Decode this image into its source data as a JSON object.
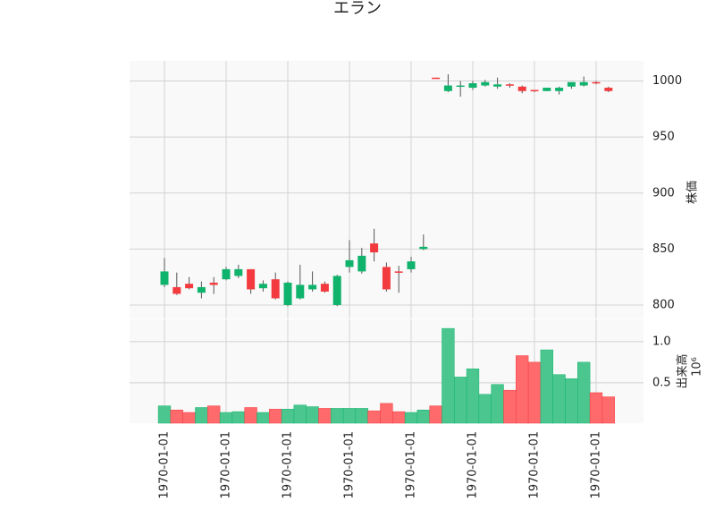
{
  "chart_data": {
    "type": "candlestick",
    "title": "エラン",
    "categories": [
      "1970-01-01",
      null,
      null,
      null,
      null,
      "1970-01-01",
      null,
      null,
      null,
      null,
      "1970-01-01",
      null,
      null,
      null,
      null,
      "1970-01-01",
      null,
      null,
      null,
      null,
      "1970-01-01",
      null,
      null,
      null,
      null,
      "1970-01-01",
      null,
      null,
      null,
      null,
      "1970-01-01",
      null,
      null,
      null,
      null,
      "1970-01-01",
      null
    ],
    "open": [
      818,
      816,
      819,
      811,
      820,
      823,
      826,
      832,
      815,
      823,
      800,
      806,
      814,
      819,
      800,
      834,
      830,
      855,
      834,
      830,
      832,
      850,
      1003,
      991,
      995,
      994,
      996,
      995,
      997,
      995,
      992,
      991,
      991,
      995,
      996,
      999,
      994
    ],
    "high": [
      842,
      829,
      825,
      821,
      825,
      834,
      836,
      832,
      822,
      829,
      821,
      836,
      830,
      821,
      827,
      858,
      851,
      868,
      838,
      835,
      843,
      863,
      1003,
      1006,
      1000,
      1000,
      1001,
      1003,
      998,
      996,
      992,
      994,
      995,
      999,
      1004,
      1000,
      995
    ],
    "low": [
      816,
      809,
      814,
      806,
      810,
      822,
      824,
      810,
      812,
      805,
      799,
      805,
      812,
      811,
      799,
      829,
      828,
      839,
      812,
      811,
      829,
      849,
      1002,
      990,
      986,
      992,
      995,
      993,
      994,
      989,
      990,
      991,
      988,
      993,
      995,
      997,
      990
    ],
    "close": [
      830,
      810,
      815,
      816,
      818,
      832,
      832,
      814,
      819,
      806,
      820,
      818,
      818,
      812,
      826,
      840,
      844,
      847,
      814,
      829,
      839,
      852,
      1002,
      996,
      996,
      998,
      999,
      997,
      996,
      991,
      991,
      994,
      994,
      999,
      999,
      998,
      991
    ],
    "volume": [
      0.22,
      0.17,
      0.14,
      0.2,
      0.22,
      0.14,
      0.15,
      0.2,
      0.14,
      0.18,
      0.18,
      0.23,
      0.21,
      0.19,
      0.19,
      0.19,
      0.19,
      0.16,
      0.25,
      0.15,
      0.14,
      0.17,
      0.22,
      1.16,
      0.57,
      0.67,
      0.36,
      0.48,
      0.41,
      0.83,
      0.75,
      0.9,
      0.6,
      0.55,
      0.75,
      0.38,
      0.33
    ],
    "ylabel": "株価",
    "ylim": [
      788,
      1018
    ],
    "yticks": [
      800,
      850,
      900,
      950,
      1000
    ],
    "volume_label": "出来高",
    "volume_scale": "10⁶",
    "volume_ylim": [
      0.01,
      1.27
    ],
    "volume_yticks": [
      0.5,
      {
        "value": 1,
        "label": "1.0"
      }
    ],
    "up_color": "#0fb36c",
    "down_color": "#f33b3f",
    "volume_up_color": "#4cc68f",
    "volume_down_color": "#ff6a6d",
    "grid": true
  }
}
